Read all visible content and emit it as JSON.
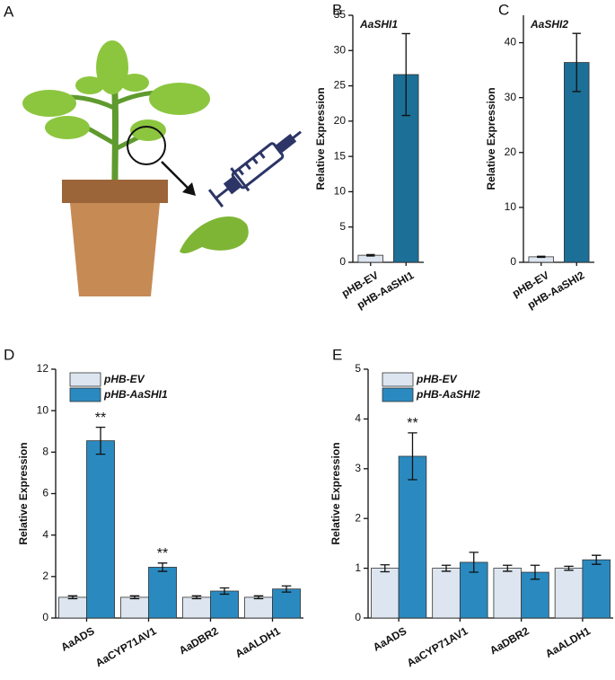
{
  "figure_a_label": "A",
  "chart_data": [
    {
      "type": "bar",
      "panel_label": "B",
      "title": "AaSHI1",
      "ylabel": "Relative Expression",
      "categories": [
        "pHB-EV",
        "pHB-AaSHI1"
      ],
      "values": [
        1,
        26.6
      ],
      "errors": [
        0.1,
        5.8
      ],
      "colors": [
        "#dde6f0",
        "#1c6f96"
      ],
      "ylim": [
        0,
        35
      ],
      "yticks": [
        0,
        5,
        10,
        15,
        20,
        25,
        30,
        35
      ]
    },
    {
      "type": "bar",
      "panel_label": "C",
      "title": "AaSHI2",
      "ylabel": "Relative Expression",
      "categories": [
        "pHB-EV",
        "pHB-AaSHI2"
      ],
      "values": [
        1,
        36.4
      ],
      "errors": [
        0.1,
        5.3
      ],
      "colors": [
        "#dde6f0",
        "#1c6f96"
      ],
      "ylim": [
        0,
        45
      ],
      "yticks": [
        0,
        10,
        20,
        30,
        40
      ]
    },
    {
      "type": "bar",
      "panel_label": "D",
      "ylabel": "Relative Expression",
      "categories": [
        "AaADS",
        "AaCYP71AV1",
        "AaDBR2",
        "AaALDH1"
      ],
      "series": [
        {
          "name": "pHB-EV",
          "color": "#dde6f0",
          "values": [
            1,
            1,
            1,
            1
          ],
          "errors": [
            0.07,
            0.07,
            0.07,
            0.07
          ]
        },
        {
          "name": "pHB-AaSHI1",
          "color": "#2a8ac0",
          "values": [
            8.55,
            2.45,
            1.3,
            1.4
          ],
          "errors": [
            0.65,
            0.2,
            0.15,
            0.15
          ],
          "annotations": [
            "**",
            "**",
            null,
            null
          ]
        }
      ],
      "legend": "upper left",
      "ylim": [
        0,
        12
      ],
      "yticks": [
        0,
        2,
        4,
        6,
        8,
        10,
        12
      ]
    },
    {
      "type": "bar",
      "panel_label": "E",
      "ylabel": "Relative Expression",
      "categories": [
        "AaADS",
        "AaCYP71AV1",
        "AaDBR2",
        "AaALDH1"
      ],
      "series": [
        {
          "name": "pHB-EV",
          "color": "#dde6f0",
          "values": [
            1,
            1,
            1,
            1
          ],
          "errors": [
            0.07,
            0.06,
            0.06,
            0.04
          ]
        },
        {
          "name": "pHB-AaSHI2",
          "color": "#2a8ac0",
          "values": [
            3.25,
            1.12,
            0.92,
            1.17
          ],
          "errors": [
            0.47,
            0.2,
            0.14,
            0.09
          ],
          "annotations": [
            "**",
            null,
            null,
            null
          ]
        }
      ],
      "legend": "upper left",
      "ylim": [
        0,
        5
      ],
      "yticks": [
        0,
        1,
        2,
        3,
        4,
        5
      ]
    }
  ]
}
